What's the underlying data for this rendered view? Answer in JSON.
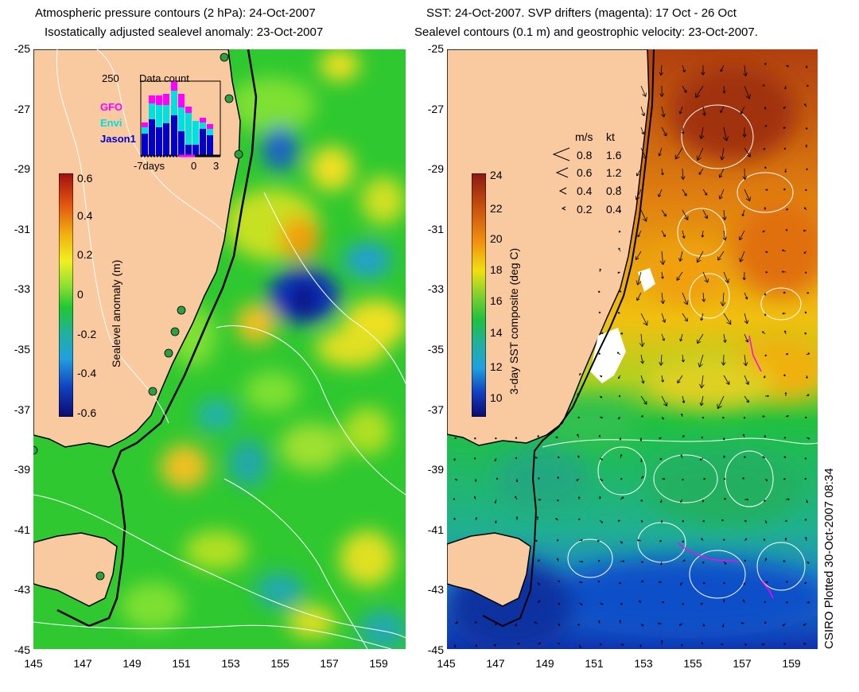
{
  "left_panel": {
    "title_line1": "Atmospheric pressure contours (2 hPa): 24-Oct-2007",
    "title_line2": "Isostatically adjusted sealevel anomaly: 23-Oct-2007",
    "colorbar_label": "Sealevel anomaly (m)",
    "colorbar_ticks": [
      "0.6",
      "0.4",
      "0.2",
      "0",
      "-0.2",
      "-0.4",
      "-0.6"
    ],
    "inset": {
      "count_label": "250",
      "title": "Data count",
      "legend": [
        {
          "name": "GFO",
          "color": "#ff00ff"
        },
        {
          "name": "Envi",
          "color": "#00e0e0"
        },
        {
          "name": "Jason1",
          "color": "#0000cc"
        }
      ],
      "x_ticks": [
        "-7days",
        "0",
        "3"
      ]
    }
  },
  "right_panel": {
    "title_line1": "SST: 24-Oct-2007. SVP drifters (magenta): 17 Oct - 26 Oct",
    "title_line2": "Sealevel contours (0.1 m) and geostrophic velocity: 23-Oct-2007.",
    "colorbar_label": "3-day SST composite (deg C)",
    "colorbar_ticks": [
      "24",
      "22",
      "20",
      "18",
      "16",
      "14",
      "12",
      "10"
    ],
    "speed_legend": {
      "header_ms": "m/s",
      "header_kt": "kt",
      "rows": [
        {
          "ms": "0.8",
          "kt": "1.6"
        },
        {
          "ms": "0.6",
          "kt": "1.2"
        },
        {
          "ms": "0.4",
          "kt": "0.8"
        },
        {
          "ms": "0.2",
          "kt": "0.4"
        }
      ]
    }
  },
  "lat_ticks": [
    "-25",
    "-27",
    "-29",
    "-31",
    "-33",
    "-35",
    "-37",
    "-39",
    "-41",
    "-43",
    "-45"
  ],
  "lon_ticks": [
    "145",
    "147",
    "149",
    "151",
    "153",
    "155",
    "157",
    "159"
  ],
  "credit": "CSIRO Plotted 30-Oct-2007 08:34",
  "colors": {
    "land": "#f9c9a0",
    "ocean_mid": "#2fc830",
    "coast": "#000000",
    "contour": "#ffffff"
  }
}
